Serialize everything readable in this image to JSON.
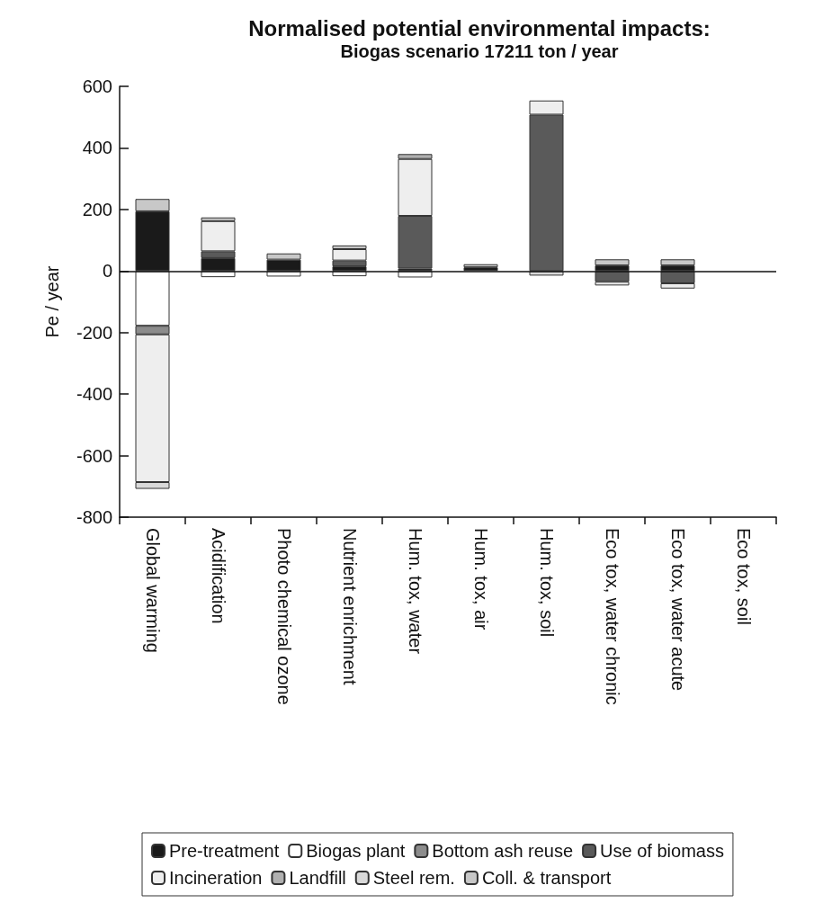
{
  "chart_data": {
    "type": "bar",
    "title": "Normalised potential environmental impacts:",
    "subtitle": "Biogas scenario 17211 ton / year",
    "ylabel": "Pe / year",
    "categories": [
      "Global warming",
      "Acidification",
      "Photo chemical ozone",
      "Nutrient enrichment",
      "Hum. tox, water",
      "Hum. tox, air",
      "Hum. tox, soil",
      "Eco tox, water chronic",
      "Eco tox, water acute",
      "Eco tox, soil"
    ],
    "stacked": true,
    "ylim": [
      -800,
      600
    ],
    "yticks": [
      -800,
      -600,
      -400,
      -200,
      0,
      200,
      400,
      600
    ],
    "grid": false,
    "legend": "bottom",
    "ref_lines": [
      {
        "axis": "y",
        "value": 0
      }
    ],
    "series": [
      {
        "name": "Pre-treatment",
        "color": "#1a1a1a",
        "values": [
          194,
          42,
          37,
          15,
          8,
          12,
          null,
          18,
          18,
          null
        ]
      },
      {
        "name": "Biogas plant",
        "color": "#ffffff",
        "values": [
          -178,
          -20,
          -18,
          -17,
          -21,
          null,
          null,
          null,
          null,
          null
        ]
      },
      {
        "name": "Bottom ash reuse",
        "color": "#8c8c8c",
        "values": [
          -28,
          null,
          null,
          null,
          null,
          null,
          null,
          null,
          null,
          null
        ]
      },
      {
        "name": "Use of biomass",
        "color": "#5a5a5a",
        "values": [
          null,
          22,
          null,
          19,
          171,
          null,
          508,
          -35,
          -40,
          null
        ]
      },
      {
        "name": "Incineration",
        "color": "#eeeeee",
        "values": [
          -480,
          98,
          null,
          37,
          185,
          null,
          46,
          -12,
          -17,
          null
        ]
      },
      {
        "name": "Landfill",
        "color": "#b0b0b0",
        "values": [
          null,
          null,
          null,
          null,
          16,
          null,
          null,
          null,
          null,
          null
        ]
      },
      {
        "name": "Steel rem.",
        "color": "#d9d9d9",
        "values": [
          -22,
          null,
          null,
          null,
          null,
          null,
          -15,
          null,
          null,
          null
        ]
      },
      {
        "name": "Coll. & transport",
        "color": "#c8c8c8",
        "values": [
          40,
          12,
          20,
          12,
          null,
          10,
          null,
          20,
          20,
          null
        ]
      }
    ]
  }
}
